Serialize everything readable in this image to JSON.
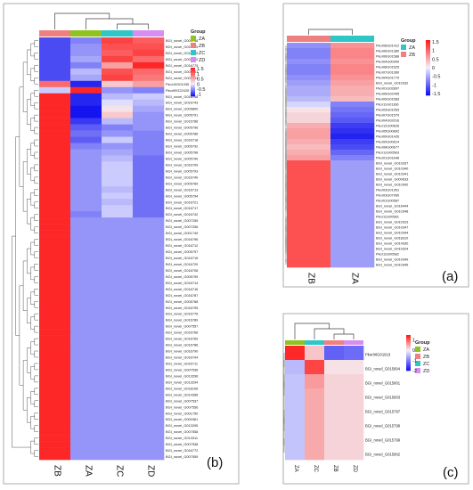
{
  "chart_data": [
    {
      "type": "heatmap",
      "panel_label": "(b)",
      "legend_title": "Group",
      "columns": [
        "ZB",
        "ZA",
        "ZC",
        "ZD"
      ],
      "groups": [
        "ZA",
        "ZB",
        "ZC",
        "ZD"
      ],
      "group_colors": {
        "ZA": "#8fc31f",
        "ZB": "#f08080",
        "ZC": "#2ec6c6",
        "ZD": "#d88ef0"
      },
      "colorbar_ticks": [
        1.5,
        1,
        0.5,
        0,
        -0.5,
        -1
      ],
      "value_range": [
        -1.2,
        1.6
      ],
      "rows": [
        "BGI_novel_G001738",
        "BGI_novel_G016785",
        "BGI_novel_G016705",
        "BGI_novel_G007560",
        "BGI_novel_G016779",
        "BGI_novel_G001751",
        "BGI_novel_G001741",
        "Pkor10G01335",
        "Pkor09G22425",
        "BGI_novel_G016748",
        "BGI_novel_G016743",
        "BGI_novel_G005800",
        "BGI_novel_G005791",
        "BGI_novel_G015786",
        "BGI_novel_G005796",
        "BGI_novel_G005786",
        "BGI_novel_G016718",
        "BGI_novel_G005792",
        "BGI_novel_G005798",
        "BGI_novel_G005790",
        "BGI_novel_G016709",
        "BGI_novel_G005793",
        "BGI_novel_G016740",
        "BGI_novel_G005789",
        "BGI_novel_G016713",
        "BGI_novel_G005794",
        "BGI_novel_G016721",
        "BGI_novel_G016717",
        "BGI_novel_G016742",
        "BGI_novel_G007255",
        "BGI_novel_G007256",
        "BGI_novel_G001749",
        "BGI_novel_G016796",
        "BGI_novel_G016712",
        "BGI_novel_G005797",
        "BGI_novel_G016715",
        "BGI_novel_G016720",
        "BGI_novel_G016708",
        "BGI_novel_G005799",
        "BGI_novel_G016714",
        "BGI_novel_G016716",
        "BGI_novel_G016787",
        "BGI_novel_G005788",
        "BGI_novel_G016795",
        "BGI_novel_G016776",
        "BGI_novel_G016789",
        "BGI_novel_G007557",
        "BGI_novel_G016766",
        "BGI_novel_G016769",
        "BGI_novel_G016786",
        "BGI_novel_G016790",
        "BGI_novel_G016794",
        "BGI_novel_G016711",
        "BGI_novel_G007536",
        "BGI_novel_G013296",
        "BGI_novel_G013294",
        "BGI_novel_G018106",
        "BGI_novel_G014358",
        "BGI_novel_G007537",
        "BGI_novel_G007556",
        "BGI_novel_G001750",
        "BGI_novel_G000361",
        "BGI_novel_G013295",
        "BGI_novel_G007558",
        "BGI_novel_G013311",
        "BGI_novel_G007538",
        "BGI_novel_G016772",
        "BGI_novel_G007559"
      ],
      "values": [
        [
          -0.9,
          -0.6,
          1.3,
          1.1
        ],
        [
          -0.9,
          -0.5,
          1.2,
          1.2
        ],
        [
          -0.9,
          -0.5,
          1.1,
          1.3
        ],
        [
          -0.9,
          -0.4,
          1.3,
          1.0
        ],
        [
          -0.9,
          -0.6,
          0.6,
          1.5
        ],
        [
          -0.9,
          -0.3,
          1.2,
          1.0
        ],
        [
          -0.9,
          -0.4,
          1.3,
          0.9
        ],
        [
          1.0,
          -1.1,
          0.3,
          0.6
        ],
        [
          -0.2,
          1.5,
          -0.5,
          -0.6
        ],
        [
          1.5,
          -1.1,
          -0.3,
          -0.2
        ],
        [
          1.5,
          -1.1,
          -0.1,
          -0.3
        ],
        [
          1.5,
          -1.2,
          0.1,
          -0.4
        ],
        [
          1.5,
          -1.2,
          0.3,
          -0.5
        ],
        [
          1.5,
          -1.0,
          -0.3,
          -0.5
        ],
        [
          1.5,
          -0.8,
          -0.6,
          -0.5
        ],
        [
          1.5,
          -0.7,
          -0.5,
          -0.6
        ],
        [
          1.5,
          -0.8,
          -0.2,
          -0.6
        ],
        [
          1.5,
          -0.6,
          -0.5,
          -0.6
        ],
        [
          1.5,
          -0.5,
          -0.4,
          -0.6
        ],
        [
          1.5,
          -0.5,
          -0.3,
          -0.7
        ],
        [
          1.5,
          -0.5,
          -0.2,
          -0.7
        ],
        [
          1.5,
          -0.5,
          -0.2,
          -0.7
        ],
        [
          1.5,
          -0.5,
          -0.2,
          -0.7
        ],
        [
          1.5,
          -0.5,
          -0.2,
          -0.7
        ],
        [
          1.5,
          -0.5,
          -0.3,
          -0.7
        ],
        [
          1.5,
          -0.5,
          -0.2,
          -0.7
        ],
        [
          1.5,
          -0.5,
          -0.3,
          -0.7
        ],
        [
          1.5,
          -0.5,
          -0.2,
          -0.7
        ],
        [
          1.5,
          -0.6,
          -0.2,
          -0.7
        ],
        [
          1.5,
          -0.5,
          -0.5,
          -0.5
        ],
        [
          1.5,
          -0.5,
          -0.5,
          -0.5
        ],
        [
          1.5,
          -0.5,
          -0.5,
          -0.5
        ],
        [
          1.5,
          -0.5,
          -0.5,
          -0.5
        ],
        [
          1.5,
          -0.5,
          -0.5,
          -0.5
        ],
        [
          1.5,
          -0.5,
          -0.5,
          -0.5
        ],
        [
          1.5,
          -0.5,
          -0.5,
          -0.5
        ],
        [
          1.5,
          -0.5,
          -0.5,
          -0.5
        ],
        [
          1.5,
          -0.5,
          -0.5,
          -0.5
        ],
        [
          1.5,
          -0.5,
          -0.5,
          -0.5
        ],
        [
          1.5,
          -0.5,
          -0.5,
          -0.5
        ],
        [
          1.5,
          -0.5,
          -0.5,
          -0.5
        ],
        [
          1.5,
          -0.5,
          -0.5,
          -0.5
        ],
        [
          1.5,
          -0.5,
          -0.5,
          -0.5
        ],
        [
          1.5,
          -0.5,
          -0.5,
          -0.5
        ],
        [
          1.5,
          -0.5,
          -0.5,
          -0.5
        ],
        [
          1.5,
          -0.5,
          -0.5,
          -0.5
        ],
        [
          1.5,
          -0.5,
          -0.5,
          -0.5
        ],
        [
          1.5,
          -0.5,
          -0.5,
          -0.5
        ],
        [
          1.5,
          -0.5,
          -0.5,
          -0.5
        ],
        [
          1.5,
          -0.5,
          -0.5,
          -0.5
        ],
        [
          1.5,
          -0.5,
          -0.5,
          -0.5
        ],
        [
          1.5,
          -0.5,
          -0.5,
          -0.5
        ],
        [
          1.5,
          -0.5,
          -0.5,
          -0.5
        ],
        [
          1.5,
          -0.5,
          -0.5,
          -0.5
        ],
        [
          1.5,
          -0.5,
          -0.5,
          -0.5
        ],
        [
          1.5,
          -0.5,
          -0.5,
          -0.5
        ],
        [
          1.5,
          -0.5,
          -0.5,
          -0.5
        ],
        [
          1.5,
          -0.5,
          -0.5,
          -0.5
        ],
        [
          1.5,
          -0.5,
          -0.5,
          -0.5
        ],
        [
          1.5,
          -0.5,
          -0.5,
          -0.5
        ],
        [
          1.5,
          -0.5,
          -0.5,
          -0.5
        ],
        [
          1.5,
          -0.5,
          -0.5,
          -0.5
        ],
        [
          1.5,
          -0.5,
          -0.5,
          -0.5
        ],
        [
          1.5,
          -0.5,
          -0.5,
          -0.5
        ],
        [
          1.5,
          -0.5,
          -0.5,
          -0.5
        ],
        [
          1.5,
          -0.5,
          -0.5,
          -0.5
        ],
        [
          1.5,
          -0.5,
          -0.5,
          -0.5
        ],
        [
          1.5,
          -0.5,
          -0.5,
          -0.5
        ]
      ]
    },
    {
      "type": "heatmap",
      "panel_label": "(a)",
      "legend_title": "Group",
      "columns": [
        "ZB",
        "ZA"
      ],
      "groups": [
        "ZA",
        "ZB"
      ],
      "group_colors": {
        "ZA": "#2ec6c6",
        "ZB": "#f08080"
      },
      "colorbar_ticks": [
        1.5,
        1,
        0.5,
        0,
        -0.5,
        -1,
        -1.5
      ],
      "value_range": [
        -1.6,
        1.6
      ],
      "rows": [
        "Pkor08G01412",
        "Pkor06G01380",
        "Pkor06G01588",
        "Pkor04G00990",
        "Pkor08G01525",
        "Pkor07G01360",
        "Pkor04G01779",
        "BGI_novel_G010332",
        "Pkor01G02897",
        "Pkor06G02495",
        "Pkor09G01583",
        "Pkor11G01166",
        "Pkor03G01953",
        "Pkor07G01570",
        "Pkor04G02016",
        "Pkor12G00626",
        "Pkor05G00892",
        "Pkor09G01426",
        "Pkor09G00614",
        "Pkor08G00677",
        "Pkor11G00583",
        "Pkor01G01648",
        "BGI_novel_G010337",
        "BGI_novel_G010340",
        "BGI_novel_G010341",
        "BGI_novel_G000633",
        "BGI_novel_G010342",
        "Pkor03G01951",
        "Pkor03G07950",
        "Pkor01G00587",
        "BGI_novel_G016444",
        "BGI_novel_G010348",
        "Pkor11G00581",
        "BGI_novel_G010323",
        "BGI_novel_G010347",
        "BGI_novel_G010344",
        "BGI_novel_G018310",
        "BGI_novel_G014330",
        "BGI_novel_G010324",
        "Pkor11G00582",
        "BGI_novel_G010349",
        "BGI_novel_G010345"
      ],
      "values": [
        [
          -0.7,
          0.7
        ],
        [
          -0.8,
          0.8
        ],
        [
          -0.8,
          0.8
        ],
        [
          -0.7,
          0.7
        ],
        [
          -0.8,
          0.8
        ],
        [
          -0.8,
          0.8
        ],
        [
          -0.7,
          0.7
        ],
        [
          -0.6,
          0.6
        ],
        [
          -0.5,
          0.5
        ],
        [
          -0.5,
          0.5
        ],
        [
          -0.4,
          0.4
        ],
        [
          -0.2,
          -0.8
        ],
        [
          0.1,
          -0.9
        ],
        [
          0.2,
          -1.0
        ],
        [
          0.2,
          -1.1
        ],
        [
          0.5,
          -1.3
        ],
        [
          0.6,
          -1.4
        ],
        [
          0.6,
          -1.5
        ],
        [
          0.5,
          -1.3
        ],
        [
          0.4,
          -1.2
        ],
        [
          0.5,
          -1.0
        ],
        [
          0.6,
          -0.8
        ],
        [
          1.2,
          -0.6
        ],
        [
          1.2,
          -0.6
        ],
        [
          1.2,
          -0.6
        ],
        [
          1.2,
          -0.6
        ],
        [
          1.2,
          -0.6
        ],
        [
          1.2,
          -0.6
        ],
        [
          1.2,
          -0.6
        ],
        [
          1.2,
          -0.6
        ],
        [
          1.2,
          -0.6
        ],
        [
          1.2,
          -0.6
        ],
        [
          1.2,
          -0.6
        ],
        [
          1.2,
          -0.6
        ],
        [
          1.2,
          -0.6
        ],
        [
          1.2,
          -0.6
        ],
        [
          1.2,
          -0.6
        ],
        [
          1.2,
          -0.6
        ],
        [
          1.2,
          -0.6
        ],
        [
          1.2,
          -0.6
        ],
        [
          1.2,
          -0.6
        ],
        [
          1.2,
          -0.6
        ]
      ]
    },
    {
      "type": "heatmap",
      "panel_label": "(c)",
      "legend_title": "Group",
      "columns": [
        "ZA",
        "ZC",
        "ZB",
        "ZD"
      ],
      "groups": [
        "ZA",
        "ZB",
        "ZC",
        "ZD"
      ],
      "group_colors": {
        "ZA": "#8fc31f",
        "ZB": "#f08080",
        "ZC": "#2ec6c6",
        "ZD": "#d88ef0"
      },
      "colorbar_ticks": [
        1,
        0,
        -1,
        -2
      ],
      "value_range": [
        -2,
        1.5
      ],
      "rows": [
        "Pkor06G01919",
        "BGI_novel_G015804",
        "BGI_novel_G015801",
        "BGI_novel_G015803",
        "BGI_novel_G015797",
        "BGI_novel_G015798",
        "BGI_novel_G015799",
        "BGI_novel_G015802"
      ],
      "values": [
        [
          1.4,
          0.3,
          -1.3,
          -1.2
        ],
        [
          -0.5,
          1.2,
          0.1,
          0.1
        ],
        [
          -0.4,
          0.6,
          0.2,
          0.2
        ],
        [
          -0.4,
          0.5,
          0.2,
          0.2
        ],
        [
          -0.4,
          0.5,
          0.2,
          0.2
        ],
        [
          -0.4,
          0.5,
          0.2,
          0.2
        ],
        [
          -0.4,
          0.5,
          0.2,
          0.2
        ],
        [
          -0.4,
          0.5,
          0.2,
          0.2
        ]
      ]
    }
  ]
}
